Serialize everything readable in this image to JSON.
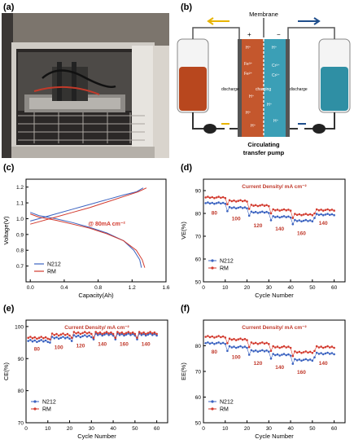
{
  "figure": {
    "panel_labels": [
      "(a)",
      "(b)",
      "(c)",
      "(d)",
      "(e)",
      "(f)"
    ]
  },
  "schematic": {
    "membrane_label": "Membrane",
    "pump_label_line1": "Circulating",
    "pump_label_line2": "transfer pump",
    "left_terminal": "+",
    "right_terminal": "−",
    "discharge_left": "discharge",
    "charging": "charging",
    "discharge_right": "discharge",
    "left_ions": [
      "H⁺",
      "Fe³⁺",
      "Fe²⁺",
      "H⁺",
      "H⁺",
      "H⁺"
    ],
    "right_ions": [
      "H⁺",
      "Cr³⁺",
      "Cr²⁺",
      "H⁺",
      "H⁺"
    ],
    "colors": {
      "positive": "#b8471e",
      "negative": "#2f8fa4",
      "yellow_arrow": "#e8b400",
      "blue_arrow": "#1f4e8c"
    }
  },
  "chart_data": [
    {
      "id": "c",
      "type": "line",
      "xlabel": "Capacity(Ah)",
      "ylabel": "Voltage(V)",
      "xlim": [
        -0.05,
        1.6
      ],
      "ylim": [
        0.6,
        1.25
      ],
      "xticks": [
        "0.0",
        "0.4",
        "0.8",
        "1.2",
        "1.6"
      ],
      "yticks": [
        "0.7",
        "0.8",
        "0.9",
        "1.0",
        "1.1",
        "1.2"
      ],
      "annotation": "@ 80mA cm⁻²",
      "series": [
        {
          "name": "N212",
          "color": "#3a62c0",
          "charge": [
            [
              0,
              0.985
            ],
            [
              0.1,
              1.0
            ],
            [
              0.3,
              1.03
            ],
            [
              0.5,
              1.06
            ],
            [
              0.7,
              1.09
            ],
            [
              0.9,
              1.12
            ],
            [
              1.1,
              1.15
            ],
            [
              1.25,
              1.17
            ],
            [
              1.33,
              1.195
            ]
          ],
          "discharge": [
            [
              0,
              1.04
            ],
            [
              0.1,
              1.02
            ],
            [
              0.3,
              1.0
            ],
            [
              0.5,
              0.975
            ],
            [
              0.7,
              0.945
            ],
            [
              0.9,
              0.91
            ],
            [
              1.1,
              0.86
            ],
            [
              1.22,
              0.8
            ],
            [
              1.29,
              0.74
            ],
            [
              1.31,
              0.69
            ]
          ]
        },
        {
          "name": "RM",
          "color": "#d23a2e",
          "charge": [
            [
              0,
              0.965
            ],
            [
              0.1,
              0.98
            ],
            [
              0.3,
              1.01
            ],
            [
              0.5,
              1.04
            ],
            [
              0.7,
              1.07
            ],
            [
              0.9,
              1.105
            ],
            [
              1.1,
              1.14
            ],
            [
              1.27,
              1.17
            ],
            [
              1.37,
              1.195
            ]
          ],
          "discharge": [
            [
              0,
              1.03
            ],
            [
              0.1,
              1.01
            ],
            [
              0.3,
              0.99
            ],
            [
              0.5,
              0.965
            ],
            [
              0.7,
              0.94
            ],
            [
              0.9,
              0.905
            ],
            [
              1.1,
              0.86
            ],
            [
              1.25,
              0.8
            ],
            [
              1.32,
              0.74
            ],
            [
              1.35,
              0.69
            ]
          ]
        }
      ]
    },
    {
      "id": "d",
      "type": "scatter",
      "xlabel": "Cycle Number",
      "ylabel": "VE(%)",
      "xlim": [
        0,
        65
      ],
      "ylim": [
        50,
        95
      ],
      "xticks": [
        "0",
        "10",
        "20",
        "30",
        "40",
        "50",
        "60"
      ],
      "yticks": [
        "50",
        "60",
        "70",
        "80",
        "90"
      ],
      "title": "Current Density/ mA cm⁻²",
      "segment_labels": [
        {
          "text": "80",
          "x": 5,
          "y": 79.5
        },
        {
          "text": "100",
          "x": 15,
          "y": 77
        },
        {
          "text": "120",
          "x": 25,
          "y": 74
        },
        {
          "text": "140",
          "x": 35,
          "y": 72.5
        },
        {
          "text": "160",
          "x": 45,
          "y": 70.5
        },
        {
          "text": "140",
          "x": 55,
          "y": 75
        }
      ],
      "series": [
        {
          "name": "N212",
          "color": "#3a62c0",
          "levels": [
            84.5,
            82.5,
            80.5,
            78.5,
            76.8,
            79.5
          ]
        },
        {
          "name": "RM",
          "color": "#d23a2e",
          "levels": [
            87,
            85.5,
            83.5,
            81.5,
            79.5,
            81.5
          ]
        }
      ]
    },
    {
      "id": "e",
      "type": "scatter",
      "xlabel": "Cycle Number",
      "ylabel": "CE(%)",
      "xlim": [
        0,
        65
      ],
      "ylim": [
        70,
        102
      ],
      "xticks": [
        "0",
        "10",
        "20",
        "30",
        "40",
        "50",
        "60"
      ],
      "yticks": [
        "70",
        "80",
        "90",
        "100"
      ],
      "title": "Current Density/ mA cm⁻²",
      "segment_labels": [
        {
          "text": "80",
          "x": 5,
          "y": 92.5
        },
        {
          "text": "100",
          "x": 15,
          "y": 93
        },
        {
          "text": "120",
          "x": 25,
          "y": 93.5
        },
        {
          "text": "140",
          "x": 35,
          "y": 94
        },
        {
          "text": "160",
          "x": 45,
          "y": 94
        },
        {
          "text": "140",
          "x": 55,
          "y": 94
        }
      ],
      "series": [
        {
          "name": "N212",
          "color": "#3a62c0",
          "levels": [
            95.5,
            96.5,
            97,
            97.5,
            97.5,
            97.5
          ]
        },
        {
          "name": "RM",
          "color": "#d23a2e",
          "levels": [
            96.5,
            97.5,
            98,
            98,
            98,
            98
          ]
        }
      ]
    },
    {
      "id": "f",
      "type": "scatter",
      "xlabel": "Cycle Number",
      "ylabel": "EE(%)",
      "xlim": [
        0,
        65
      ],
      "ylim": [
        50,
        90
      ],
      "xticks": [
        "0",
        "10",
        "20",
        "30",
        "40",
        "50",
        "60"
      ],
      "yticks": [
        "50",
        "60",
        "70",
        "80"
      ],
      "title": "Current Density/ mA cm⁻²",
      "segment_labels": [
        {
          "text": "80",
          "x": 5,
          "y": 77
        },
        {
          "text": "100",
          "x": 15,
          "y": 75
        },
        {
          "text": "120",
          "x": 25,
          "y": 72.5
        },
        {
          "text": "140",
          "x": 35,
          "y": 71
        },
        {
          "text": "160",
          "x": 45,
          "y": 69
        },
        {
          "text": "140",
          "x": 55,
          "y": 72.5
        }
      ],
      "series": [
        {
          "name": "N212",
          "color": "#3a62c0",
          "levels": [
            81,
            79.5,
            78,
            76.5,
            74.5,
            77
          ]
        },
        {
          "name": "RM",
          "color": "#d23a2e",
          "levels": [
            83.5,
            82.5,
            81,
            79.5,
            77.5,
            79.5
          ]
        }
      ]
    }
  ]
}
